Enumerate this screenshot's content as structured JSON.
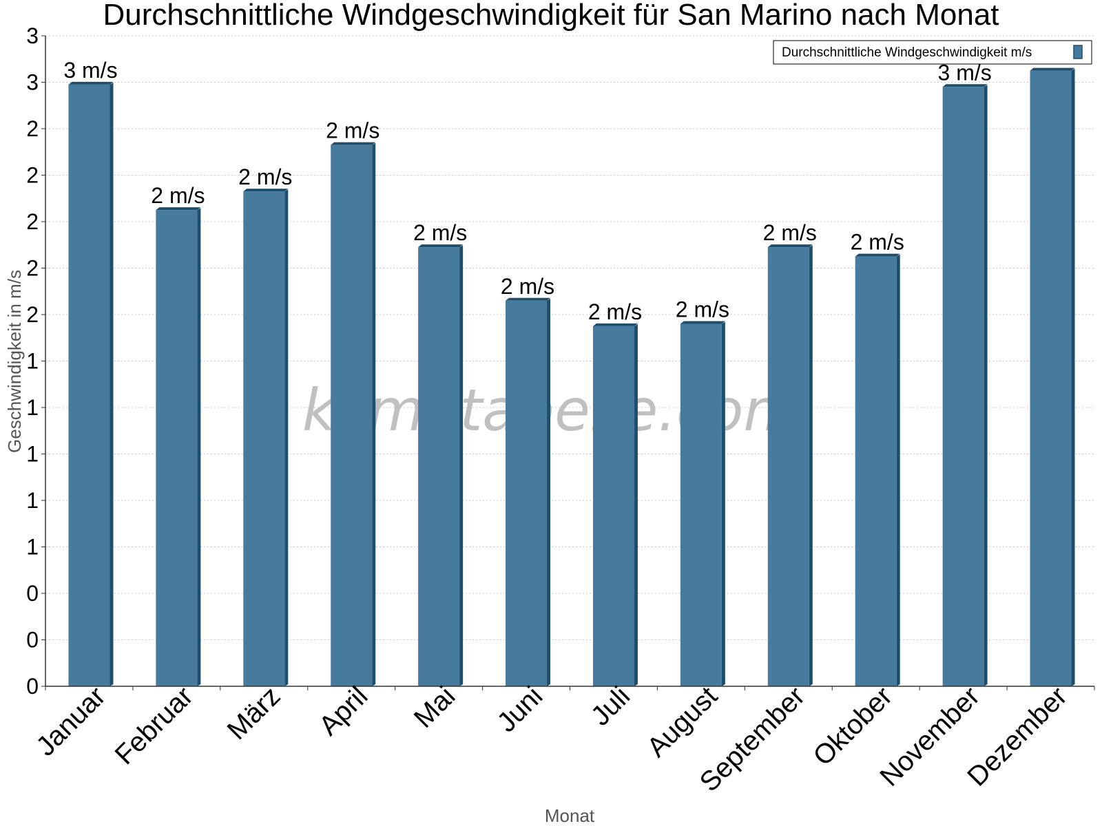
{
  "chart_data": {
    "type": "bar",
    "title": "Durchschnittliche Windgeschwindigkeit für San Marino nach Monat",
    "xlabel": "Monat",
    "ylabel": "Geschwindigkeit in m/s",
    "categories": [
      "Januar",
      "Februar",
      "März",
      "April",
      "Mai",
      "Juni",
      "Juli",
      "August",
      "September",
      "Oktober",
      "November",
      "Dezember"
    ],
    "series": [
      {
        "name": "Durchschnittliche Windgeschwindigkeit m/s",
        "values": [
          2.59,
          2.05,
          2.13,
          2.33,
          1.89,
          1.66,
          1.55,
          1.56,
          1.89,
          1.85,
          2.58,
          2.65
        ],
        "data_labels": [
          "3 m/s",
          "2 m/s",
          "2 m/s",
          "2 m/s",
          "2 m/s",
          "2 m/s",
          "2 m/s",
          "2 m/s",
          "2 m/s",
          "2 m/s",
          "3 m/s",
          "3 m/s"
        ],
        "color": "#467b9d",
        "side_color": "#1d4e6e"
      }
    ],
    "ylim": [
      0,
      2.8
    ],
    "yticks": [
      0,
      0.2,
      0.4,
      0.6,
      0.8,
      1.0,
      1.2,
      1.4,
      1.6,
      1.8,
      2.0,
      2.2,
      2.4,
      2.6,
      2.8
    ],
    "ytick_labels": [
      "0",
      "0",
      "0",
      "1",
      "1",
      "1",
      "1",
      "1",
      "2",
      "2",
      "2",
      "2",
      "2",
      "3",
      "3"
    ],
    "grid": true,
    "legend": "top-right"
  },
  "watermark": "klimatabelle.com"
}
